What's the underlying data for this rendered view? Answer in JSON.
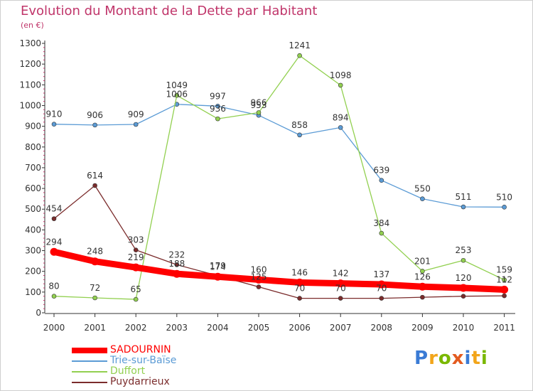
{
  "header": {
    "title": "Evolution du Montant de la Dette par Habitant",
    "subtitle": "(en €)"
  },
  "logo": {
    "text": "Proxiti",
    "colors": [
      "#3a7bd5",
      "#f2a51a",
      "#7ab800",
      "#e35b1f",
      "#3a7bd5",
      "#f2a51a",
      "#7ab800"
    ]
  },
  "colors": {
    "title": "#c0356a",
    "axis": "#333333",
    "label": "#333333",
    "minor_tick": "#c0356a"
  },
  "chart_data": {
    "type": "line",
    "title": "Evolution du Montant de la Dette par Habitant",
    "ylabel": "(en €)",
    "x": [
      "2000",
      "2001",
      "2002",
      "2003",
      "2004",
      "2005",
      "2006",
      "2007",
      "2008",
      "2009",
      "2010",
      "2011"
    ],
    "ylim": [
      0,
      1300
    ],
    "yticks": [
      0,
      100,
      200,
      300,
      400,
      500,
      600,
      700,
      800,
      900,
      1000,
      1100,
      1200,
      1300
    ],
    "grid": false,
    "legend_position": "bottom-left",
    "series": [
      {
        "name": "SADOURNIN",
        "color": "#ff0000",
        "values": [
          294,
          248,
          219,
          188,
          174,
          160,
          146,
          142,
          137,
          126,
          120,
          112
        ],
        "labels": [
          "294",
          "248",
          "219",
          "188",
          "174",
          "160",
          "146",
          "142",
          "137",
          "126",
          "120",
          "112"
        ]
      },
      {
        "name": "Trie-sur-Baïse",
        "color": "#5b9bd5",
        "values": [
          910,
          906,
          909,
          1006,
          997,
          953,
          858,
          894,
          639,
          550,
          511,
          510
        ],
        "labels": [
          "910",
          "906",
          "909",
          "1006",
          "997",
          "953",
          "858",
          "894",
          "639",
          "550",
          "511",
          "510"
        ]
      },
      {
        "name": "Duffort",
        "color": "#92d050",
        "values": [
          80,
          72,
          65,
          1049,
          936,
          966,
          1241,
          1098,
          384,
          201,
          253,
          159
        ],
        "labels": [
          "80",
          "72",
          "65",
          "1049",
          "936",
          "966",
          "1241",
          "1098",
          "384",
          "201",
          "253",
          "159"
        ]
      },
      {
        "name": "Puydarrieux",
        "color": "#7b2c2c",
        "values": [
          454,
          614,
          303,
          232,
          179,
          125,
          70,
          70,
          70,
          75,
          80,
          82
        ],
        "labels": [
          "454",
          "614",
          "303",
          "232",
          "179",
          "125",
          "70",
          "70",
          "70",
          "",
          "",
          ""
        ]
      }
    ]
  }
}
